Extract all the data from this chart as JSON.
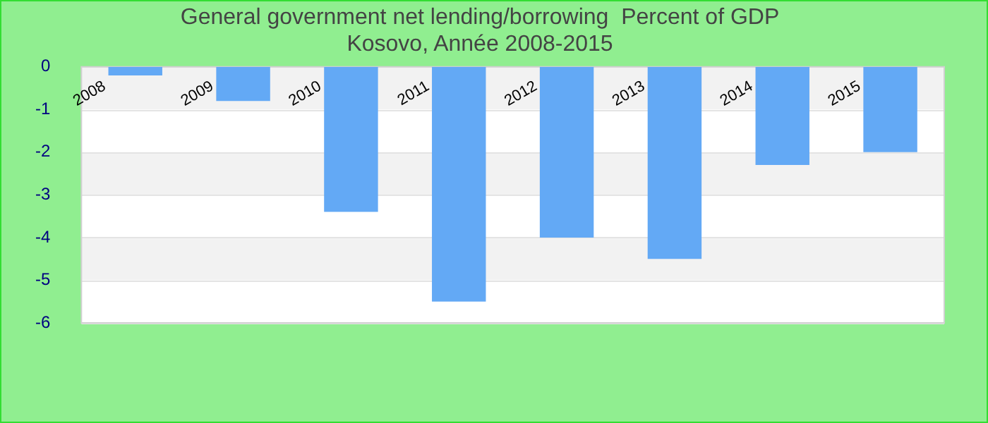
{
  "chart_data": {
    "type": "bar",
    "title": "General government net lending/borrowing  Percent of GDP",
    "subtitle": "Kosovo, Année 2008-2015",
    "categories": [
      "2008",
      "2009",
      "2010",
      "2011",
      "2012",
      "2013",
      "2014",
      "2015"
    ],
    "values": [
      -0.2,
      -0.8,
      -3.4,
      -5.5,
      -4.0,
      -4.5,
      -2.3,
      -2.0
    ],
    "color": "#63a9f5",
    "ylim": [
      -6,
      0
    ],
    "yticks": [
      -6,
      -5,
      -4,
      -3,
      -2,
      -1,
      0
    ],
    "grid": "y",
    "legend": false
  }
}
